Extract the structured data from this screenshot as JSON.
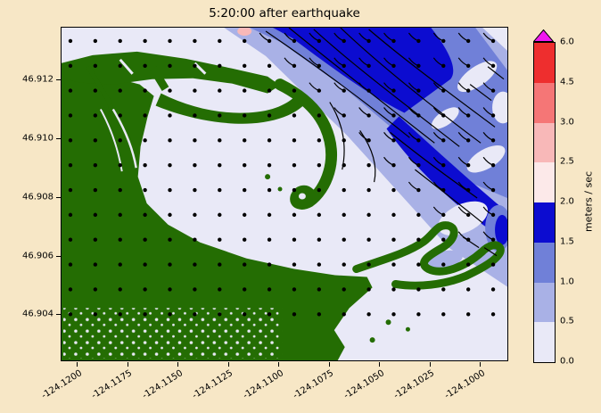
{
  "colors": {
    "figure_background": "#f7e7c6",
    "text": "#000000"
  },
  "chart_data": {
    "type": "heatmap",
    "title": "5:20:00 after earthquake",
    "x_ticks": [
      "-124.1200",
      "-124.1175",
      "-124.1150",
      "-124.1125",
      "-124.1100",
      "-124.1075",
      "-124.1050",
      "-124.1025",
      "-124.1000"
    ],
    "y_ticks": [
      "46.912",
      "46.910",
      "46.908",
      "46.906",
      "46.904"
    ],
    "xlim": [
      -124.1208,
      -124.0986
    ],
    "ylim": [
      46.9024,
      46.9138
    ],
    "grid": false,
    "colorbar": {
      "label": "meters / sec",
      "orientation": "vertical",
      "tick_labels": [
        "0.0",
        "0.5",
        "1.0",
        "1.5",
        "2.0",
        "2.5",
        "3.0",
        "4.5",
        "6.0"
      ],
      "levels": [
        0.0,
        0.5,
        1.0,
        1.5,
        2.0,
        2.5,
        3.0,
        4.5,
        6.0
      ],
      "segment_colors_bottom_to_top": [
        "#e9e9f7",
        "#a9b1e6",
        "#7080d8",
        "#0c0cd0",
        "#fce9e9",
        "#f8b8b8",
        "#f57676",
        "#ee2e2e"
      ],
      "over_color": "#f019f0"
    },
    "map": {
      "land_color": "#246d03",
      "water_color": "#e9e9f7",
      "grid_dots": {
        "color": "#000000",
        "x0": 10,
        "y0": 15,
        "dx": 28,
        "dy": 28,
        "cols": 18,
        "rows": 12,
        "radius": 2.2
      },
      "tracer_tail": {
        "dx": -11,
        "dy": -9
      }
    }
  }
}
